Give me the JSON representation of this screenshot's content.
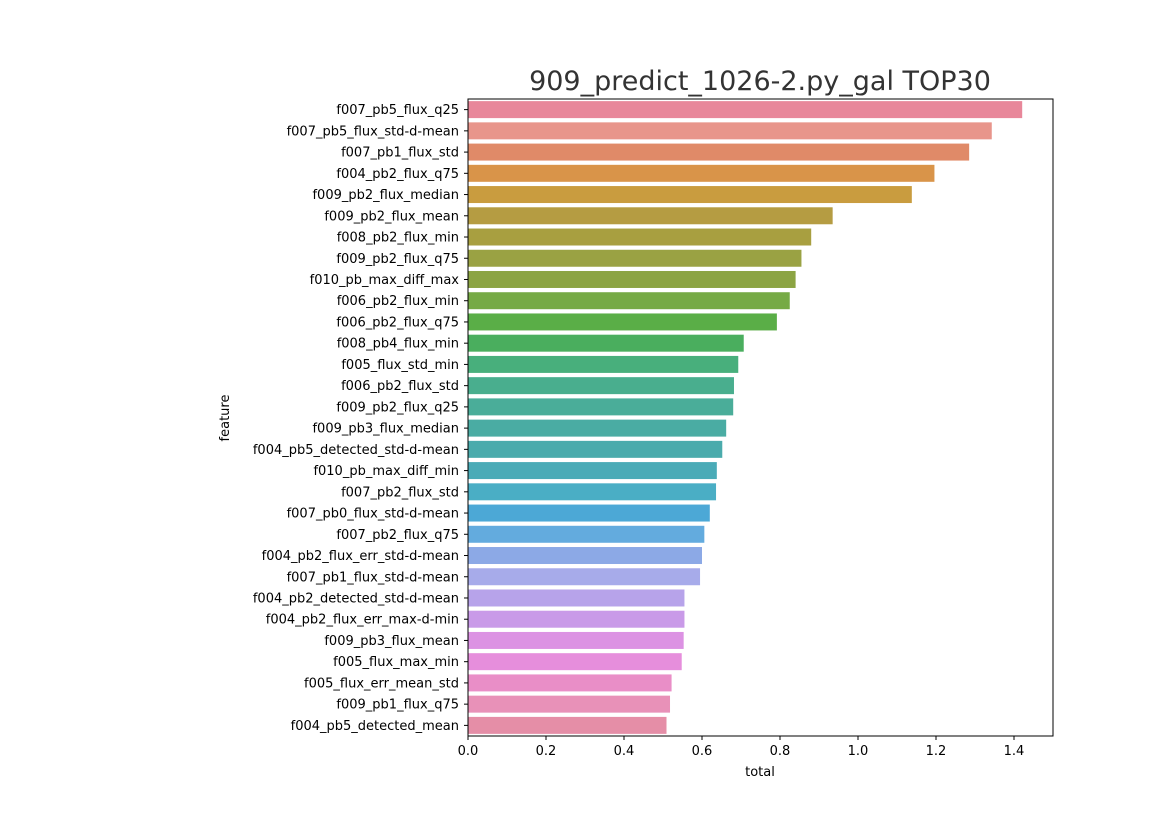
{
  "chart_data": {
    "type": "bar",
    "orientation": "horizontal",
    "title": "909_predict_1026-2.py_gal TOP30",
    "xlabel": "total",
    "ylabel": "feature",
    "xlim": [
      0,
      1.5
    ],
    "xticks": [
      "0.0",
      "0.2",
      "0.4",
      "0.6",
      "0.8",
      "1.0",
      "1.2",
      "1.4"
    ],
    "grid": false,
    "categories": [
      "f007_pb5_flux_q25",
      "f007_pb5_flux_std-d-mean",
      "f007_pb1_flux_std",
      "f004_pb2_flux_q75",
      "f009_pb2_flux_median",
      "f009_pb2_flux_mean",
      "f008_pb2_flux_min",
      "f009_pb2_flux_q75",
      "f010_pb_max_diff_max",
      "f006_pb2_flux_min",
      "f006_pb2_flux_q75",
      "f008_pb4_flux_min",
      "f005_flux_std_min",
      "f006_pb2_flux_std",
      "f009_pb2_flux_q25",
      "f009_pb3_flux_median",
      "f004_pb5_detected_std-d-mean",
      "f010_pb_max_diff_min",
      "f007_pb2_flux_std",
      "f007_pb0_flux_std-d-mean",
      "f007_pb2_flux_q75",
      "f004_pb2_flux_err_std-d-mean",
      "f007_pb1_flux_std-d-mean",
      "f004_pb2_detected_std-d-mean",
      "f004_pb2_flux_err_max-d-min",
      "f009_pb3_flux_mean",
      "f005_flux_max_min",
      "f005_flux_err_mean_std",
      "f009_pb1_flux_q75",
      "f004_pb5_detected_mean"
    ],
    "values": [
      1.421,
      1.343,
      1.285,
      1.196,
      1.138,
      0.935,
      0.88,
      0.855,
      0.84,
      0.825,
      0.792,
      0.707,
      0.693,
      0.682,
      0.68,
      0.662,
      0.652,
      0.638,
      0.636,
      0.62,
      0.606,
      0.6,
      0.595,
      0.555,
      0.555,
      0.553,
      0.548,
      0.522,
      0.518,
      0.509
    ],
    "colors": [
      "#e8879a",
      "#e8958b",
      "#e08a68",
      "#d99449",
      "#c99c3f",
      "#b59c42",
      "#a89f40",
      "#9aa243",
      "#8ca443",
      "#76aa45",
      "#5aae47",
      "#4aae5e",
      "#48af7c",
      "#49ae8e",
      "#4aad99",
      "#4aaca3",
      "#4aabac",
      "#4aabb7",
      "#4aaec5",
      "#4ca8d6",
      "#63abde",
      "#8ca9e6",
      "#a7abea",
      "#b7a3ea",
      "#c99ae8",
      "#dc92e3",
      "#e68edc",
      "#e98ec7",
      "#e891b8",
      "#e58ea7"
    ]
  }
}
